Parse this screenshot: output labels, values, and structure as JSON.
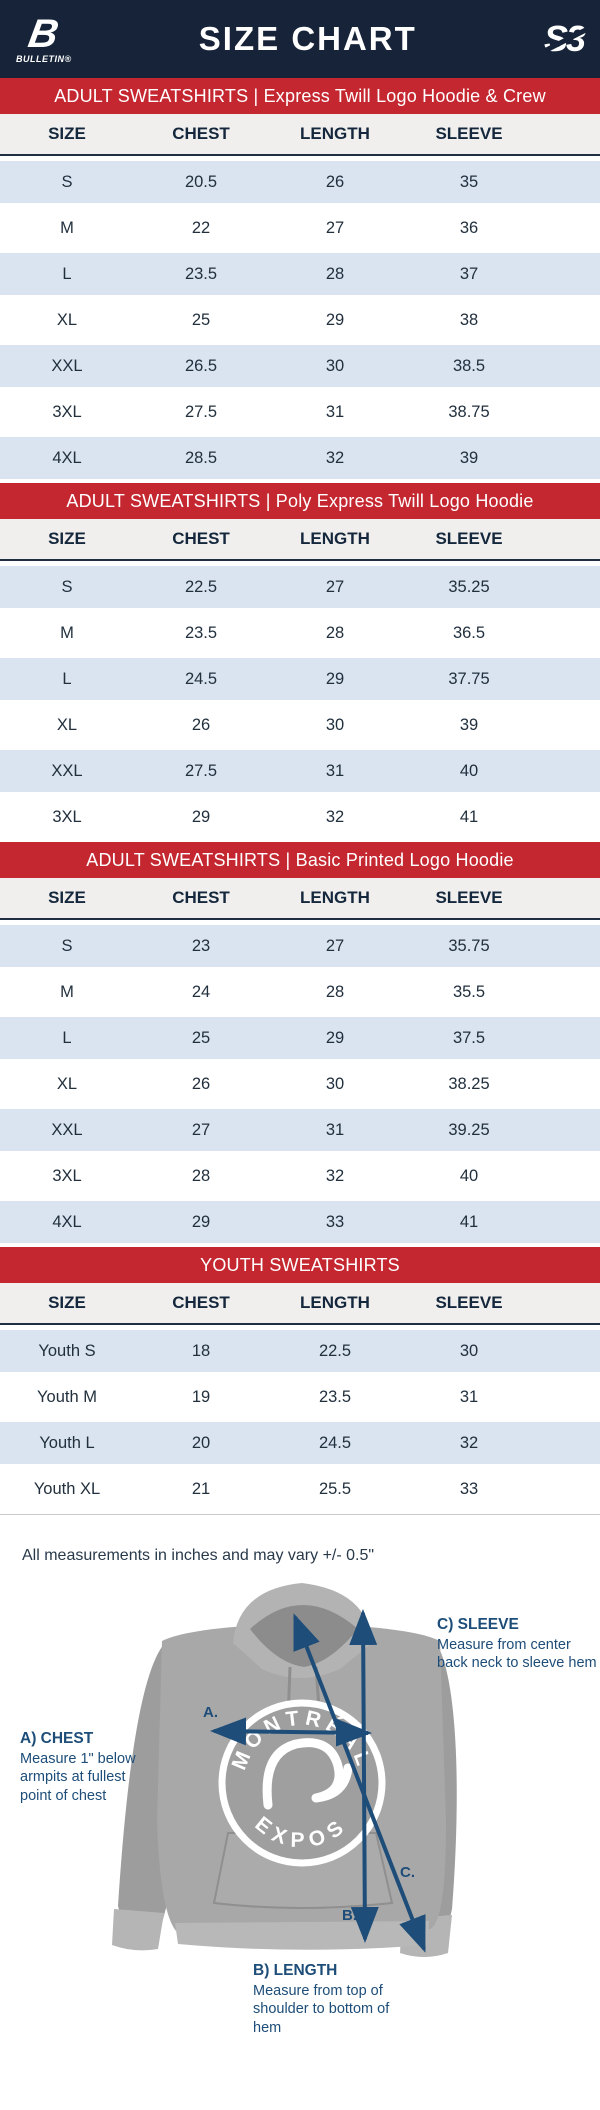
{
  "header": {
    "title": "SIZE CHART",
    "brand_left_mark": "B",
    "brand_left": "BULLETIN®",
    "brand_right": "S3"
  },
  "columns": [
    "SIZE",
    "CHEST",
    "LENGTH",
    "SLEEVE"
  ],
  "sections": [
    {
      "banner": "ADULT SWEATSHIRTS | Express Twill Logo Hoodie & Crew",
      "rows": [
        [
          "S",
          "20.5",
          "26",
          "35"
        ],
        [
          "M",
          "22",
          "27",
          "36"
        ],
        [
          "L",
          "23.5",
          "28",
          "37"
        ],
        [
          "XL",
          "25",
          "29",
          "38"
        ],
        [
          "XXL",
          "26.5",
          "30",
          "38.5"
        ],
        [
          "3XL",
          "27.5",
          "31",
          "38.75"
        ],
        [
          "4XL",
          "28.5",
          "32",
          "39"
        ]
      ]
    },
    {
      "banner": "ADULT SWEATSHIRTS | Poly Express Twill Logo Hoodie",
      "rows": [
        [
          "S",
          "22.5",
          "27",
          "35.25"
        ],
        [
          "M",
          "23.5",
          "28",
          "36.5"
        ],
        [
          "L",
          "24.5",
          "29",
          "37.75"
        ],
        [
          "XL",
          "26",
          "30",
          "39"
        ],
        [
          "XXL",
          "27.5",
          "31",
          "40"
        ],
        [
          "3XL",
          "29",
          "32",
          "41"
        ]
      ]
    },
    {
      "banner": "ADULT SWEATSHIRTS | Basic Printed Logo Hoodie",
      "rows": [
        [
          "S",
          "23",
          "27",
          "35.75"
        ],
        [
          "M",
          "24",
          "28",
          "35.5"
        ],
        [
          "L",
          "25",
          "29",
          "37.5"
        ],
        [
          "XL",
          "26",
          "30",
          "38.25"
        ],
        [
          "XXL",
          "27",
          "31",
          "39.25"
        ],
        [
          "3XL",
          "28",
          "32",
          "40"
        ],
        [
          "4XL",
          "29",
          "33",
          "41"
        ]
      ]
    },
    {
      "banner": "YOUTH SWEATSHIRTS",
      "rows": [
        [
          "Youth S",
          "18",
          "22.5",
          "30"
        ],
        [
          "Youth M",
          "19",
          "23.5",
          "31"
        ],
        [
          "Youth L",
          "20",
          "24.5",
          "32"
        ],
        [
          "Youth XL",
          "21",
          "25.5",
          "33"
        ]
      ]
    }
  ],
  "note": "All measurements in inches and may vary +/- 0.5\"",
  "diagram": {
    "logo_top": "MONTRÉAL",
    "logo_bottom": "EXPOS",
    "arrow_a": "A.",
    "arrow_b": "B.",
    "arrow_c": "C.",
    "chest": {
      "title": "A) CHEST",
      "text": "Measure 1\" below armpits at fullest point of chest"
    },
    "length": {
      "title": "B) LENGTH",
      "text": "Measure from top of shoulder to bottom of hem"
    },
    "sleeve": {
      "title": "C) SLEEVE",
      "text": "Measure from center back neck to sleeve hem"
    }
  },
  "colors": {
    "navy": "#162338",
    "red": "#c42730",
    "row_blue": "#d9e4f0",
    "header_row_bg": "#f0efed",
    "diagram_navy": "#1d4d78",
    "hoodie_gray": "#a8a8a8"
  }
}
